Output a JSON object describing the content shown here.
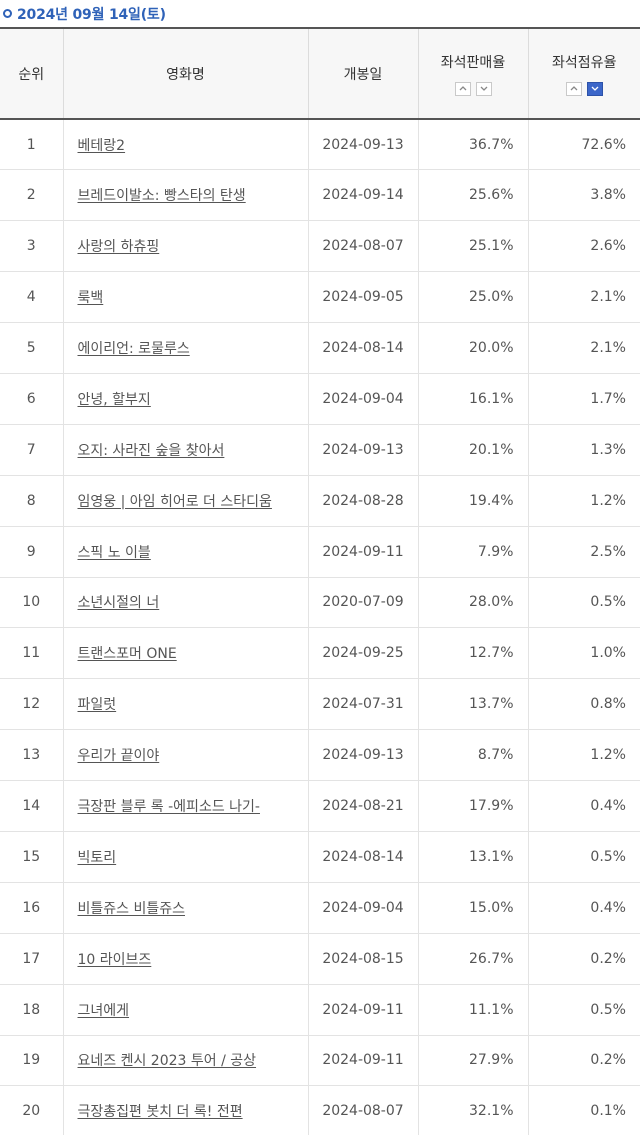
{
  "date_label": "2024년 09월 14일(토)",
  "columns": {
    "rank": "순위",
    "title": "영화명",
    "open_date": "개봉일",
    "seat_sales_rate": "좌석판매율",
    "seat_share_rate": "좌석점유율"
  },
  "sort": {
    "seat_sales_rate": {
      "up_icon": "caret-up-icon",
      "down_icon": "caret-down-icon",
      "active": "none"
    },
    "seat_share_rate": {
      "up_icon": "caret-up-icon",
      "down_icon": "caret-down-icon",
      "active": "down"
    }
  },
  "colors": {
    "accent": "#2f62b8",
    "sort_active": "#3b66c9"
  },
  "rows": [
    {
      "rank": "1",
      "title": "베테랑2",
      "open_date": "2024-09-13",
      "sales": "36.7%",
      "share": "72.6%"
    },
    {
      "rank": "2",
      "title": "브레드이발소: 빵스타의 탄생",
      "open_date": "2024-09-14",
      "sales": "25.6%",
      "share": "3.8%"
    },
    {
      "rank": "3",
      "title": "사랑의 하츄핑",
      "open_date": "2024-08-07",
      "sales": "25.1%",
      "share": "2.6%"
    },
    {
      "rank": "4",
      "title": "룩백",
      "open_date": "2024-09-05",
      "sales": "25.0%",
      "share": "2.1%"
    },
    {
      "rank": "5",
      "title": "에이리언: 로물루스",
      "open_date": "2024-08-14",
      "sales": "20.0%",
      "share": "2.1%"
    },
    {
      "rank": "6",
      "title": "안녕, 할부지",
      "open_date": "2024-09-04",
      "sales": "16.1%",
      "share": "1.7%"
    },
    {
      "rank": "7",
      "title": "오지: 사라진 숲을 찾아서",
      "open_date": "2024-09-13",
      "sales": "20.1%",
      "share": "1.3%"
    },
    {
      "rank": "8",
      "title": "임영웅 | 아임 히어로 더 스타디움",
      "open_date": "2024-08-28",
      "sales": "19.4%",
      "share": "1.2%"
    },
    {
      "rank": "9",
      "title": "스픽 노 이블",
      "open_date": "2024-09-11",
      "sales": "7.9%",
      "share": "2.5%"
    },
    {
      "rank": "10",
      "title": "소년시절의 너",
      "open_date": "2020-07-09",
      "sales": "28.0%",
      "share": "0.5%"
    },
    {
      "rank": "11",
      "title": "트랜스포머 ONE",
      "open_date": "2024-09-25",
      "sales": "12.7%",
      "share": "1.0%"
    },
    {
      "rank": "12",
      "title": "파일럿",
      "open_date": "2024-07-31",
      "sales": "13.7%",
      "share": "0.8%"
    },
    {
      "rank": "13",
      "title": "우리가 끝이야",
      "open_date": "2024-09-13",
      "sales": "8.7%",
      "share": "1.2%"
    },
    {
      "rank": "14",
      "title": "극장판 블루 록 -에피소드 나기-",
      "open_date": "2024-08-21",
      "sales": "17.9%",
      "share": "0.4%"
    },
    {
      "rank": "15",
      "title": "빅토리",
      "open_date": "2024-08-14",
      "sales": "13.1%",
      "share": "0.5%"
    },
    {
      "rank": "16",
      "title": "비틀쥬스 비틀쥬스",
      "open_date": "2024-09-04",
      "sales": "15.0%",
      "share": "0.4%"
    },
    {
      "rank": "17",
      "title": "10 라이브즈",
      "open_date": "2024-08-15",
      "sales": "26.7%",
      "share": "0.2%"
    },
    {
      "rank": "18",
      "title": "그녀에게",
      "open_date": "2024-09-11",
      "sales": "11.1%",
      "share": "0.5%"
    },
    {
      "rank": "19",
      "title": "요네즈 켄시 2023 투어 / 공상",
      "open_date": "2024-09-11",
      "sales": "27.9%",
      "share": "0.2%"
    },
    {
      "rank": "20",
      "title": "극장총집편 봇치 더 록! 전편",
      "open_date": "2024-08-07",
      "sales": "32.1%",
      "share": "0.1%"
    }
  ]
}
